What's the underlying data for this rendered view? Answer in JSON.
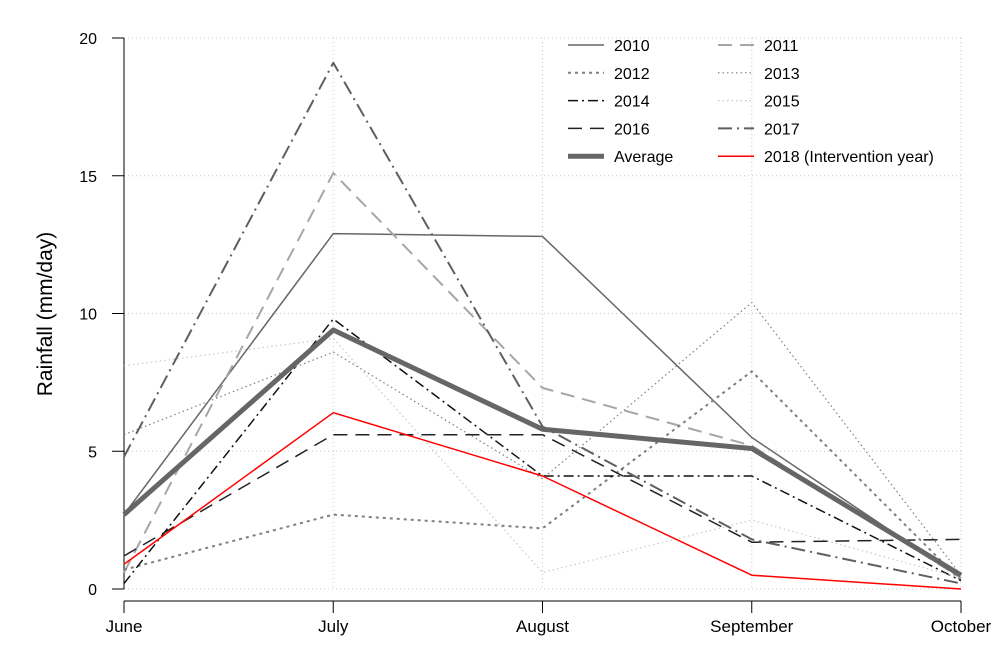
{
  "chart_data": {
    "type": "line",
    "title": "",
    "xlabel": "",
    "ylabel": "Rainfall (mm/day)",
    "categories": [
      "June",
      "July",
      "August",
      "September",
      "October"
    ],
    "ylim": [
      0,
      20
    ],
    "yticks": [
      0,
      5,
      10,
      15,
      20
    ],
    "grid": true,
    "legend_position": "top-right",
    "series": [
      {
        "name": "2010",
        "values": [
          2.7,
          12.9,
          12.8,
          5.5,
          0.4
        ],
        "color": "#666666",
        "dash": "solid",
        "width": 1.5
      },
      {
        "name": "2011",
        "values": [
          0.6,
          15.1,
          7.3,
          5.2,
          0.4
        ],
        "color": "#a6a6a6",
        "dash": "long-dash",
        "width": 2
      },
      {
        "name": "2012",
        "values": [
          0.7,
          2.7,
          2.2,
          7.9,
          0.3
        ],
        "color": "#7f7f7f",
        "dash": "dot",
        "width": 2
      },
      {
        "name": "2013",
        "values": [
          5.6,
          8.6,
          4.0,
          10.4,
          0.5
        ],
        "color": "#7f7f7f",
        "dash": "fine-dot",
        "width": 1.2
      },
      {
        "name": "2014",
        "values": [
          0.2,
          9.8,
          4.1,
          4.1,
          0.3
        ],
        "color": "#111111",
        "dash": "dash-dot",
        "width": 1.5
      },
      {
        "name": "2015",
        "values": [
          8.1,
          9.1,
          0.6,
          2.5,
          0.4
        ],
        "color": "#c8c8c8",
        "dash": "fine-dot",
        "width": 1.2
      },
      {
        "name": "2016",
        "values": [
          1.2,
          5.6,
          5.6,
          1.7,
          1.8
        ],
        "color": "#222222",
        "dash": "long-dash",
        "width": 1.5
      },
      {
        "name": "2017",
        "values": [
          4.8,
          19.1,
          5.9,
          1.8,
          0.2
        ],
        "color": "#5f5f5f",
        "dash": "long-dash-dot",
        "width": 2
      },
      {
        "name": "Average",
        "values": [
          2.7,
          9.4,
          5.8,
          5.1,
          0.5
        ],
        "color": "#666666",
        "dash": "solid",
        "width": 5
      },
      {
        "name": "2018 (Intervention year)",
        "values": [
          0.9,
          6.4,
          4.1,
          0.5,
          0.0
        ],
        "color": "#ff0000",
        "dash": "solid",
        "width": 1.5
      }
    ]
  }
}
